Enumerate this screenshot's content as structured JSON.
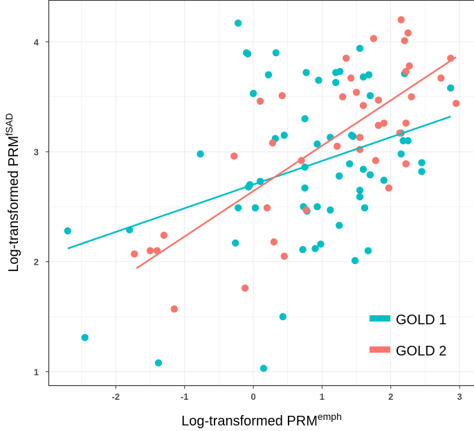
{
  "chart_data": {
    "type": "scatter",
    "title": "",
    "xlabel": "Log-transformed PRM",
    "xlabel_sup": "emph",
    "ylabel": "Log-transformed PRM",
    "ylabel_sup": "fSAD",
    "xlim": [
      -2.98,
      3.21
    ],
    "ylim": [
      0.87,
      4.38
    ],
    "xticks": [
      -2,
      -1,
      0,
      1,
      2,
      3
    ],
    "yticks": [
      1,
      2,
      3,
      4
    ],
    "grid": true,
    "legend_position": "bottom-right",
    "series": [
      {
        "name": "GOLD 1",
        "color": "#00BFC4",
        "fit_line": [
          [
            -2.7,
            2.12
          ],
          [
            2.87,
            3.32
          ]
        ],
        "points": [
          [
            -2.7,
            2.28
          ],
          [
            -2.45,
            1.31
          ],
          [
            -1.8,
            2.29
          ],
          [
            -1.38,
            1.08
          ],
          [
            -0.77,
            2.98
          ],
          [
            -0.22,
            4.17
          ],
          [
            -0.1,
            3.9
          ],
          [
            -0.08,
            3.89
          ],
          [
            0.33,
            3.9
          ],
          [
            0.22,
            3.7
          ],
          [
            0.0,
            3.53
          ],
          [
            0.45,
            3.15
          ],
          [
            0.32,
            3.12
          ],
          [
            0.77,
            3.72
          ],
          [
            0.75,
            3.3
          ],
          [
            0.95,
            3.65
          ],
          [
            1.2,
            3.72
          ],
          [
            1.26,
            3.73
          ],
          [
            1.2,
            3.63
          ],
          [
            1.55,
            3.94
          ],
          [
            1.6,
            3.68
          ],
          [
            1.68,
            3.7
          ],
          [
            1.7,
            3.51
          ],
          [
            2.2,
            3.71
          ],
          [
            2.87,
            3.58
          ],
          [
            -0.07,
            2.68
          ],
          [
            -0.05,
            2.7
          ],
          [
            0.1,
            2.73
          ],
          [
            0.75,
            2.86
          ],
          [
            0.75,
            2.67
          ],
          [
            0.93,
            3.07
          ],
          [
            1.12,
            3.13
          ],
          [
            1.43,
            3.15
          ],
          [
            1.45,
            3.14
          ],
          [
            1.4,
            2.89
          ],
          [
            1.25,
            2.78
          ],
          [
            1.6,
            2.84
          ],
          [
            1.7,
            2.79
          ],
          [
            1.9,
            2.74
          ],
          [
            2.15,
            3.17
          ],
          [
            2.18,
            3.1
          ],
          [
            2.25,
            3.1
          ],
          [
            2.15,
            2.98
          ],
          [
            2.45,
            2.9
          ],
          [
            2.45,
            2.82
          ],
          [
            -0.22,
            2.49
          ],
          [
            0.03,
            2.49
          ],
          [
            0.73,
            2.5
          ],
          [
            0.78,
            2.46
          ],
          [
            0.93,
            2.5
          ],
          [
            1.12,
            2.47
          ],
          [
            1.25,
            2.33
          ],
          [
            1.55,
            2.59
          ],
          [
            1.55,
            2.65
          ],
          [
            1.62,
            2.49
          ],
          [
            -0.26,
            2.17
          ],
          [
            0.72,
            2.11
          ],
          [
            0.9,
            2.12
          ],
          [
            0.98,
            2.16
          ],
          [
            1.48,
            2.01
          ],
          [
            1.67,
            2.1
          ],
          [
            0.43,
            1.5
          ],
          [
            0.15,
            1.03
          ]
        ]
      },
      {
        "name": "GOLD 2",
        "color": "#F8766D",
        "fit_line": [
          [
            -1.7,
            1.94
          ],
          [
            2.95,
            3.86
          ]
        ],
        "points": [
          [
            -1.73,
            2.07
          ],
          [
            -1.5,
            2.1
          ],
          [
            -1.4,
            2.1
          ],
          [
            -1.3,
            2.24
          ],
          [
            -1.15,
            1.57
          ],
          [
            -0.12,
            1.76
          ],
          [
            0.45,
            2.05
          ],
          [
            0.3,
            2.18
          ],
          [
            0.2,
            2.49
          ],
          [
            -0.28,
            2.96
          ],
          [
            0.28,
            3.08
          ],
          [
            0.7,
            2.92
          ],
          [
            0.77,
            2.47
          ],
          [
            0.1,
            3.46
          ],
          [
            0.42,
            3.51
          ],
          [
            1.3,
            3.5
          ],
          [
            1.55,
            3.02
          ],
          [
            1.22,
            3.05
          ],
          [
            1.35,
            3.85
          ],
          [
            1.42,
            3.67
          ],
          [
            1.5,
            3.54
          ],
          [
            1.6,
            3.42
          ],
          [
            1.55,
            3.13
          ],
          [
            1.78,
            2.92
          ],
          [
            1.75,
            4.03
          ],
          [
            1.82,
            3.47
          ],
          [
            1.82,
            3.24
          ],
          [
            1.9,
            3.26
          ],
          [
            1.97,
            2.67
          ],
          [
            2.15,
            4.2
          ],
          [
            2.2,
            4.01
          ],
          [
            2.25,
            4.08
          ],
          [
            2.22,
            3.73
          ],
          [
            2.27,
            3.78
          ],
          [
            2.3,
            3.5
          ],
          [
            2.22,
            3.26
          ],
          [
            2.22,
            2.89
          ],
          [
            2.13,
            3.17
          ],
          [
            2.73,
            3.67
          ],
          [
            2.87,
            3.85
          ],
          [
            2.95,
            3.44
          ]
        ]
      }
    ]
  }
}
